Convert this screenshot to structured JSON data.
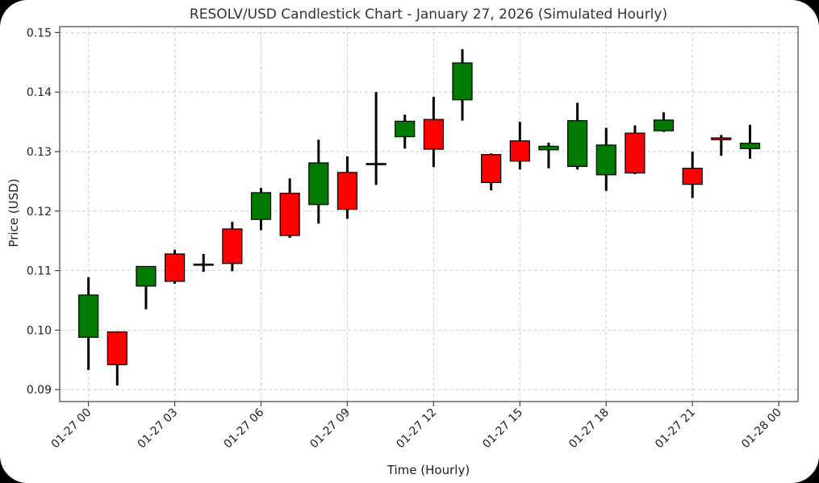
{
  "chart_data": {
    "type": "candlestick",
    "title": "RESOLV/USD Candlestick Chart - January 27, 2026 (Simulated Hourly)",
    "xlabel": "Time (Hourly)",
    "ylabel": "Price (USD)",
    "ylim": [
      0.088,
      0.151
    ],
    "xlim": [
      "01-26 23:00",
      "01-28 00:40"
    ],
    "grid": true,
    "yticks": [
      0.09,
      0.1,
      0.11,
      0.12,
      0.13,
      0.14,
      0.15
    ],
    "ytick_labels": [
      "0.09",
      "0.10",
      "0.11",
      "0.12",
      "0.13",
      "0.14",
      "0.15"
    ],
    "xticks_hours": [
      0,
      3,
      6,
      9,
      12,
      15,
      18,
      21,
      24
    ],
    "xtick_labels": [
      "01-27 00",
      "01-27 03",
      "01-27 06",
      "01-27 09",
      "01-27 12",
      "01-27 15",
      "01-27 18",
      "01-27 21",
      "01-28 00"
    ],
    "colors": {
      "up": "#007a00",
      "down": "#ff0000",
      "neutral": "#555555"
    },
    "candles": [
      {
        "hour": 0,
        "open": 0.0988,
        "high": 0.1089,
        "low": 0.0933,
        "close": 0.1059
      },
      {
        "hour": 1,
        "open": 0.0997,
        "high": 0.0998,
        "low": 0.0907,
        "close": 0.0942
      },
      {
        "hour": 2,
        "open": 0.1074,
        "high": 0.1107,
        "low": 0.1035,
        "close": 0.1107
      },
      {
        "hour": 3,
        "open": 0.1128,
        "high": 0.1135,
        "low": 0.1078,
        "close": 0.1082
      },
      {
        "hour": 4,
        "open": 0.1109,
        "high": 0.1128,
        "low": 0.1098,
        "close": 0.1111
      },
      {
        "hour": 5,
        "open": 0.117,
        "high": 0.1182,
        "low": 0.1099,
        "close": 0.1112
      },
      {
        "hour": 6,
        "open": 0.1186,
        "high": 0.1239,
        "low": 0.1168,
        "close": 0.1231
      },
      {
        "hour": 7,
        "open": 0.123,
        "high": 0.1255,
        "low": 0.1155,
        "close": 0.1159
      },
      {
        "hour": 8,
        "open": 0.1211,
        "high": 0.132,
        "low": 0.1179,
        "close": 0.1281
      },
      {
        "hour": 9,
        "open": 0.1265,
        "high": 0.1292,
        "low": 0.1187,
        "close": 0.1203
      },
      {
        "hour": 10,
        "open": 0.1279,
        "high": 0.14,
        "low": 0.1244,
        "close": 0.128
      },
      {
        "hour": 11,
        "open": 0.1325,
        "high": 0.1362,
        "low": 0.1305,
        "close": 0.1351
      },
      {
        "hour": 12,
        "open": 0.1354,
        "high": 0.1392,
        "low": 0.1274,
        "close": 0.1304
      },
      {
        "hour": 13,
        "open": 0.1387,
        "high": 0.1472,
        "low": 0.1352,
        "close": 0.1449
      },
      {
        "hour": 14,
        "open": 0.1295,
        "high": 0.1297,
        "low": 0.1235,
        "close": 0.1248
      },
      {
        "hour": 15,
        "open": 0.1318,
        "high": 0.135,
        "low": 0.127,
        "close": 0.1284
      },
      {
        "hour": 16,
        "open": 0.1303,
        "high": 0.1315,
        "low": 0.1272,
        "close": 0.1309
      },
      {
        "hour": 17,
        "open": 0.1275,
        "high": 0.1382,
        "low": 0.127,
        "close": 0.1352
      },
      {
        "hour": 18,
        "open": 0.1261,
        "high": 0.134,
        "low": 0.1234,
        "close": 0.1311
      },
      {
        "hour": 19,
        "open": 0.1331,
        "high": 0.1344,
        "low": 0.1262,
        "close": 0.1264
      },
      {
        "hour": 20,
        "open": 0.1335,
        "high": 0.1366,
        "low": 0.1333,
        "close": 0.1353
      },
      {
        "hour": 21,
        "open": 0.1272,
        "high": 0.13,
        "low": 0.1222,
        "close": 0.1245
      },
      {
        "hour": 22,
        "open": 0.1323,
        "high": 0.1328,
        "low": 0.1293,
        "close": 0.132
      },
      {
        "hour": 23,
        "open": 0.1305,
        "high": 0.1345,
        "low": 0.1288,
        "close": 0.1314
      }
    ]
  }
}
